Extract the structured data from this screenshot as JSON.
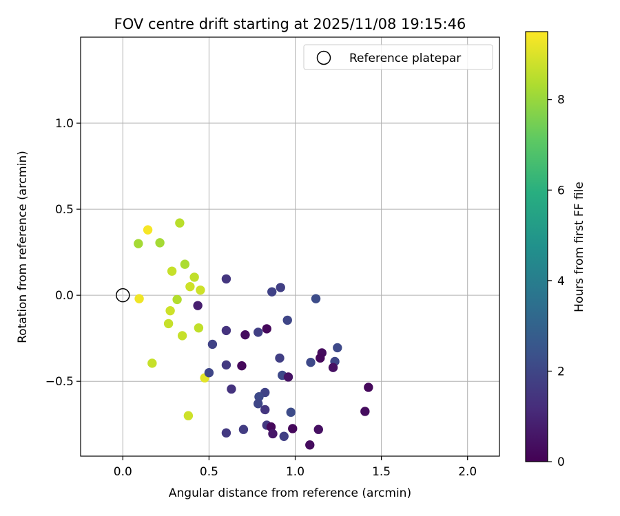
{
  "chart_data": {
    "type": "scatter",
    "title": "FOV centre drift starting at 2025/11/08 19:15:46",
    "xlabel": "Angular distance from reference (arcmin)",
    "ylabel": "Rotation from reference (arcmin)",
    "xlim": [
      -0.245,
      2.185
    ],
    "ylim": [
      -0.935,
      1.5
    ],
    "xticks": [
      0.0,
      0.5,
      1.0,
      1.5,
      2.0
    ],
    "yticks": [
      -0.5,
      0.0,
      0.5,
      1.0
    ],
    "xtick_labels": [
      "0.0",
      "0.5",
      "1.0",
      "1.5",
      "2.0"
    ],
    "ytick_labels": [
      "−0.5",
      "0.0",
      "0.5",
      "1.0"
    ],
    "grid": true,
    "legend": {
      "position": "top-right",
      "entries": [
        "Reference platepar"
      ]
    },
    "reference_point": {
      "x": 0.0,
      "y": 0.0,
      "label": "Reference platepar"
    },
    "colorbar": {
      "label": "Hours from first FF file",
      "colormap": "viridis",
      "range": [
        0,
        9.5
      ],
      "ticks": [
        0,
        2,
        4,
        6,
        8
      ],
      "tick_labels": [
        "0",
        "2",
        "4",
        "6",
        "8"
      ]
    },
    "points": [
      {
        "x": 0.145,
        "y": 0.38,
        "c": 9.4
      },
      {
        "x": 0.095,
        "y": -0.02,
        "c": 9.3
      },
      {
        "x": 0.33,
        "y": 0.42,
        "c": 8.5
      },
      {
        "x": 0.09,
        "y": 0.3,
        "c": 8.2
      },
      {
        "x": 0.215,
        "y": 0.305,
        "c": 8.2
      },
      {
        "x": 0.36,
        "y": 0.18,
        "c": 8.3
      },
      {
        "x": 0.285,
        "y": 0.14,
        "c": 8.7
      },
      {
        "x": 0.415,
        "y": 0.105,
        "c": 8.6
      },
      {
        "x": 0.39,
        "y": 0.05,
        "c": 8.8
      },
      {
        "x": 0.45,
        "y": 0.03,
        "c": 8.8
      },
      {
        "x": 0.315,
        "y": -0.025,
        "c": 8.4
      },
      {
        "x": 0.275,
        "y": -0.09,
        "c": 8.8
      },
      {
        "x": 0.265,
        "y": -0.165,
        "c": 8.7
      },
      {
        "x": 0.44,
        "y": -0.19,
        "c": 8.6
      },
      {
        "x": 0.345,
        "y": -0.235,
        "c": 8.7
      },
      {
        "x": 0.17,
        "y": -0.395,
        "c": 8.7
      },
      {
        "x": 0.475,
        "y": -0.48,
        "c": 9.1
      },
      {
        "x": 0.38,
        "y": -0.7,
        "c": 8.8
      },
      {
        "x": 0.435,
        "y": -0.06,
        "c": 0.8
      },
      {
        "x": 0.6,
        "y": 0.095,
        "c": 1.5
      },
      {
        "x": 0.915,
        "y": 0.045,
        "c": 1.8
      },
      {
        "x": 0.865,
        "y": 0.02,
        "c": 1.9
      },
      {
        "x": 1.12,
        "y": -0.02,
        "c": 2.2
      },
      {
        "x": 0.955,
        "y": -0.145,
        "c": 2.0
      },
      {
        "x": 0.835,
        "y": -0.195,
        "c": 0.2
      },
      {
        "x": 0.6,
        "y": -0.205,
        "c": 1.4
      },
      {
        "x": 0.785,
        "y": -0.215,
        "c": 1.8
      },
      {
        "x": 0.71,
        "y": -0.23,
        "c": 0.3
      },
      {
        "x": 0.52,
        "y": -0.285,
        "c": 1.9
      },
      {
        "x": 1.245,
        "y": -0.305,
        "c": 2.1
      },
      {
        "x": 1.155,
        "y": -0.335,
        "c": 0.3
      },
      {
        "x": 1.145,
        "y": -0.365,
        "c": 0.2
      },
      {
        "x": 0.91,
        "y": -0.365,
        "c": 1.8
      },
      {
        "x": 1.09,
        "y": -0.39,
        "c": 2.1
      },
      {
        "x": 1.23,
        "y": -0.385,
        "c": 2.0
      },
      {
        "x": 0.6,
        "y": -0.405,
        "c": 1.6
      },
      {
        "x": 0.69,
        "y": -0.41,
        "c": 0.2
      },
      {
        "x": 1.22,
        "y": -0.42,
        "c": 0.4
      },
      {
        "x": 0.5,
        "y": -0.45,
        "c": 2.0
      },
      {
        "x": 0.925,
        "y": -0.465,
        "c": 2.1
      },
      {
        "x": 0.96,
        "y": -0.475,
        "c": 0.5
      },
      {
        "x": 0.63,
        "y": -0.545,
        "c": 1.4
      },
      {
        "x": 1.425,
        "y": -0.535,
        "c": 0.2
      },
      {
        "x": 0.825,
        "y": -0.565,
        "c": 1.9
      },
      {
        "x": 0.79,
        "y": -0.59,
        "c": 2.1
      },
      {
        "x": 0.785,
        "y": -0.63,
        "c": 2.0
      },
      {
        "x": 0.825,
        "y": -0.665,
        "c": 1.5
      },
      {
        "x": 0.975,
        "y": -0.68,
        "c": 2.2
      },
      {
        "x": 1.405,
        "y": -0.675,
        "c": 0.3
      },
      {
        "x": 0.835,
        "y": -0.755,
        "c": 1.6
      },
      {
        "x": 0.86,
        "y": -0.765,
        "c": 0.2
      },
      {
        "x": 0.985,
        "y": -0.775,
        "c": 0.2
      },
      {
        "x": 1.135,
        "y": -0.78,
        "c": 0.4
      },
      {
        "x": 0.7,
        "y": -0.78,
        "c": 1.7
      },
      {
        "x": 0.6,
        "y": -0.8,
        "c": 1.6
      },
      {
        "x": 0.87,
        "y": -0.805,
        "c": 0.6
      },
      {
        "x": 0.935,
        "y": -0.82,
        "c": 1.8
      },
      {
        "x": 1.085,
        "y": -0.87,
        "c": 0.3
      }
    ]
  }
}
